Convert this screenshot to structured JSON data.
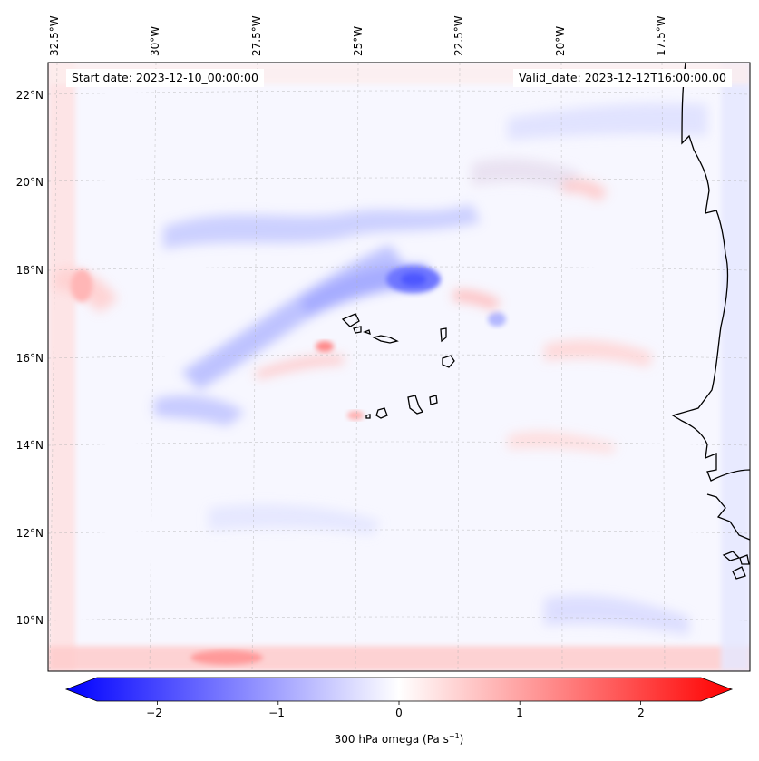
{
  "map": {
    "start_date": "Start date: 2023-12-10_00:00:00",
    "valid_date": "Valid_date: 2023-12-12T16:00:00.00",
    "lon_labels": [
      "32.5°W",
      "30°W",
      "27.5°W",
      "25°W",
      "22.5°W",
      "20°W",
      "17.5°W"
    ],
    "lat_labels": [
      "22°N",
      "20°N",
      "18°N",
      "16°N",
      "14°N",
      "12°N",
      "10°N"
    ],
    "variable": "300 hPa omega",
    "units": "Pa s",
    "units_exponent": "−1",
    "region": "Cape Verde / West African coast"
  },
  "colorbar": {
    "ticks": [
      "−2",
      "−1",
      "0",
      "1",
      "2"
    ],
    "tick_values": [
      -2,
      -1,
      0,
      1,
      2
    ],
    "range": [
      -2.5,
      2.5
    ],
    "cmap_low": "#0000ff",
    "cmap_mid": "#ffffff",
    "cmap_high": "#ff0000"
  }
}
